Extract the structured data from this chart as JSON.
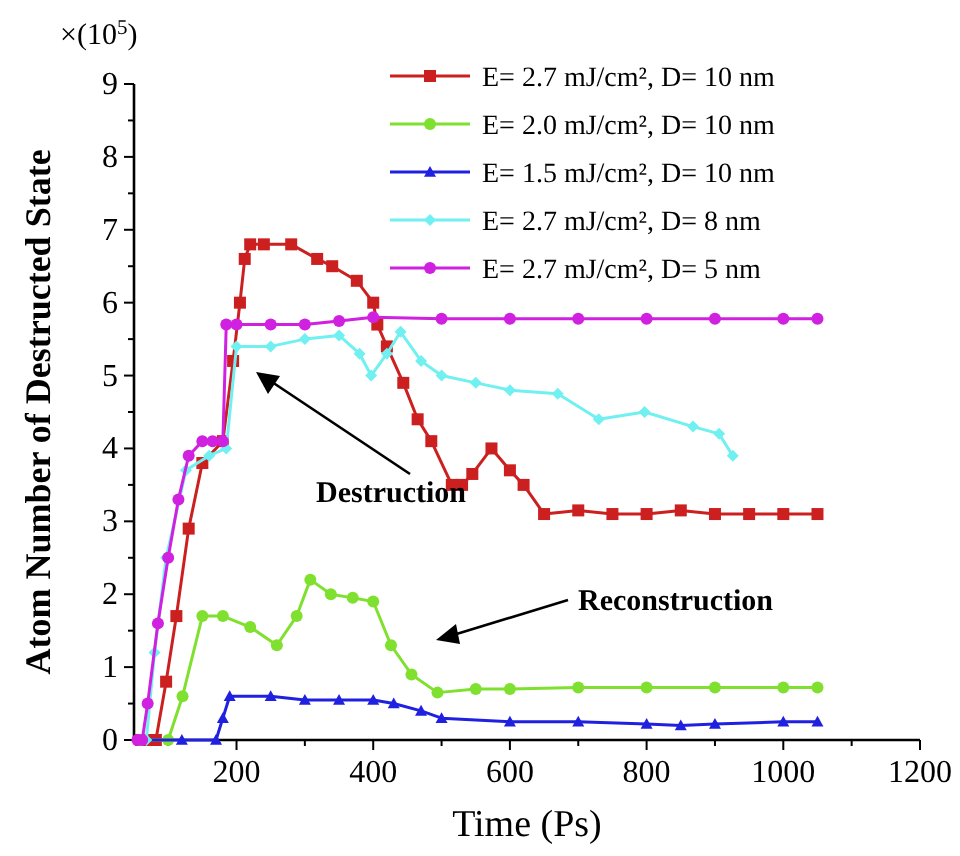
{
  "chart_data": {
    "type": "line",
    "xlabel": "Time (Ps)",
    "ylabel": "Atom Number of Destructed State",
    "annotations": [
      "×(10$^{5}$)",
      "Destruction",
      "Reconstruction"
    ],
    "xlim": [
      50,
      1200
    ],
    "ylim": [
      0,
      9
    ],
    "xticks": [
      {
        "value": 100,
        "label": null
      },
      200,
      {
        "value": 300,
        "label": null
      },
      400,
      {
        "value": 500,
        "label": null
      },
      600,
      {
        "value": 700,
        "label": null
      },
      800,
      {
        "value": 900,
        "label": null
      },
      1000,
      {
        "value": 1100,
        "label": null
      },
      1200
    ],
    "yticks": [
      0,
      {
        "value": 0.5,
        "label": null
      },
      1,
      {
        "value": 1.5,
        "label": null
      },
      2,
      {
        "value": 2.5,
        "label": null
      },
      3,
      {
        "value": 3.5,
        "label": null
      },
      4,
      {
        "value": 4.5,
        "label": null
      },
      5,
      {
        "value": 5.5,
        "label": null
      },
      6,
      {
        "value": 6.5,
        "label": null
      },
      7,
      {
        "value": 7.5,
        "label": null
      },
      8,
      {
        "value": 8.5,
        "label": null
      },
      9
    ],
    "grid": false,
    "legend": "top right",
    "line_style": "solid",
    "series": [
      {
        "name": "E= 2.7 mJ/cm², D= 10 nm",
        "color": "#cc2020",
        "marker": "square",
        "x": [
          60,
          75,
          82,
          97,
          112,
          130,
          150,
          180,
          195,
          205,
          212,
          220,
          240,
          280,
          318,
          340,
          376,
          400,
          406,
          420,
          444,
          465,
          485,
          515,
          530,
          545,
          573,
          600,
          620,
          650,
          700,
          750,
          800,
          850,
          900,
          950,
          1000,
          1050
        ],
        "values": [
          0,
          0,
          0,
          0.8,
          1.7,
          2.9,
          3.8,
          4.1,
          5.2,
          6.0,
          6.6,
          6.8,
          6.8,
          6.8,
          6.6,
          6.5,
          6.3,
          6.0,
          5.7,
          5.4,
          4.9,
          4.4,
          4.1,
          3.5,
          3.5,
          3.65,
          4.0,
          3.7,
          3.5,
          3.1,
          3.15,
          3.1,
          3.1,
          3.15,
          3.1,
          3.1,
          3.1,
          3.1
        ]
      },
      {
        "name": "E= 2.0 mJ/cm², D= 10 nm",
        "color": "#80e030",
        "marker": "circle",
        "x": [
          60,
          100,
          121,
          150,
          180,
          220,
          259,
          288,
          308,
          338,
          370,
          400,
          426,
          456,
          494,
          550,
          600,
          700,
          800,
          900,
          1000,
          1050
        ],
        "values": [
          0,
          0,
          0.6,
          1.7,
          1.7,
          1.55,
          1.3,
          1.7,
          2.2,
          2.0,
          1.95,
          1.9,
          1.3,
          0.9,
          0.65,
          0.7,
          0.7,
          0.72,
          0.72,
          0.72,
          0.72,
          0.72
        ]
      },
      {
        "name": "E= 1.5 mJ/cm², D= 10 nm",
        "color": "#2020e0",
        "marker": "triangle",
        "x": [
          60,
          120,
          170,
          180,
          190,
          250,
          300,
          350,
          400,
          430,
          470,
          500,
          600,
          700,
          800,
          850,
          900,
          1000,
          1050
        ],
        "values": [
          0,
          0,
          0,
          0.3,
          0.6,
          0.6,
          0.55,
          0.55,
          0.55,
          0.5,
          0.4,
          0.3,
          0.25,
          0.25,
          0.22,
          0.2,
          0.22,
          0.25,
          0.25
        ]
      },
      {
        "name": "E= 2.7 mJ/cm², D= 8 nm",
        "color": "#70f0f0",
        "marker": "diamond",
        "x": [
          60,
          68,
          80,
          97,
          126,
          160,
          185,
          200,
          250,
          300,
          350,
          380,
          397,
          420,
          440,
          470,
          500,
          550,
          600,
          670,
          730,
          797,
          868,
          906,
          926
        ],
        "values": [
          0,
          0,
          1.2,
          2.5,
          3.7,
          3.9,
          4.0,
          5.4,
          5.4,
          5.5,
          5.55,
          5.3,
          5.0,
          5.3,
          5.6,
          5.2,
          5.0,
          4.9,
          4.8,
          4.75,
          4.4,
          4.5,
          4.3,
          4.2,
          3.9
        ]
      },
      {
        "name": "E= 2.7 mJ/cm², D= 5 nm",
        "color": "#d020e0",
        "marker": "circle",
        "x": [
          55,
          62,
          70,
          85,
          100,
          115,
          130,
          150,
          165,
          180,
          185,
          200,
          250,
          300,
          350,
          400,
          500,
          600,
          700,
          800,
          900,
          1000,
          1050
        ],
        "values": [
          0,
          0,
          0.5,
          1.6,
          2.5,
          3.3,
          3.9,
          4.1,
          4.1,
          4.1,
          5.7,
          5.7,
          5.7,
          5.7,
          5.75,
          5.8,
          5.78,
          5.78,
          5.78,
          5.78,
          5.78,
          5.78,
          5.78
        ]
      }
    ]
  }
}
